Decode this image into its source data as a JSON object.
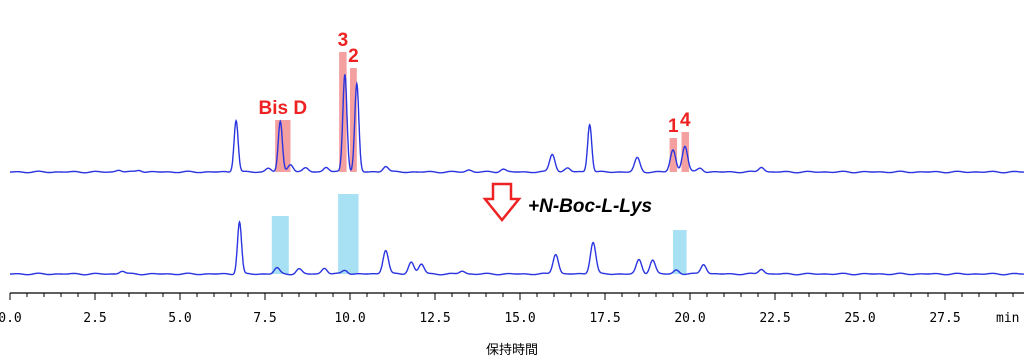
{
  "chart_data": {
    "type": "line",
    "xlabel": "保持時間",
    "xunit": "min",
    "xlim": [
      0,
      30
    ],
    "xticks": [
      {
        "value": 0,
        "label": "0.0"
      },
      {
        "value": 2.5,
        "label": "2.5"
      },
      {
        "value": 5.0,
        "label": "5.0"
      },
      {
        "value": 7.5,
        "label": "7.5"
      },
      {
        "value": 10.0,
        "label": "10.0"
      },
      {
        "value": 12.5,
        "label": "12.5"
      },
      {
        "value": 15.0,
        "label": "15.0"
      },
      {
        "value": 17.5,
        "label": "17.5"
      },
      {
        "value": 20.0,
        "label": "20.0"
      },
      {
        "value": 22.5,
        "label": "22.5"
      },
      {
        "value": 25.0,
        "label": "25.0"
      },
      {
        "value": 27.5,
        "label": "27.5"
      }
    ],
    "line_color": "#2a35e0",
    "reagent_label": "+N-Boc-L-Lys",
    "series": [
      {
        "peaks": [
          {
            "rt": 3.2,
            "h": 2
          },
          {
            "rt": 3.8,
            "h": 2
          },
          {
            "rt": 6.65,
            "h": 52
          },
          {
            "rt": 7.6,
            "h": 4
          },
          {
            "rt": 7.95,
            "h": 50
          },
          {
            "rt": 8.25,
            "h": 8
          },
          {
            "rt": 8.7,
            "h": 4
          },
          {
            "rt": 9.3,
            "h": 5
          },
          {
            "rt": 9.85,
            "h": 98
          },
          {
            "rt": 10.2,
            "h": 88
          },
          {
            "rt": 11.05,
            "h": 6
          },
          {
            "rt": 13.5,
            "h": 2
          },
          {
            "rt": 14.5,
            "h": 3
          },
          {
            "rt": 15.95,
            "h": 18
          },
          {
            "rt": 16.4,
            "h": 4
          },
          {
            "rt": 17.05,
            "h": 48
          },
          {
            "rt": 18.45,
            "h": 14
          },
          {
            "rt": 19.5,
            "h": 22
          },
          {
            "rt": 19.85,
            "h": 26
          },
          {
            "rt": 20.3,
            "h": 4
          },
          {
            "rt": 22.1,
            "h": 5
          }
        ],
        "highlights": [
          {
            "label": "Bis D",
            "rt_start": 7.8,
            "rt_end": 8.25,
            "top": 52
          },
          {
            "label": "3",
            "rt_start": 9.68,
            "rt_end": 9.9,
            "top": 120
          },
          {
            "label": "2",
            "rt_start": 10.0,
            "rt_end": 10.2,
            "top": 104
          },
          {
            "label": "1",
            "rt_start": 19.4,
            "rt_end": 19.62,
            "top": 34
          },
          {
            "label": "4",
            "rt_start": 19.75,
            "rt_end": 19.97,
            "top": 40
          }
        ],
        "highlight_color": "#f4a0a0"
      },
      {
        "peaks": [
          {
            "rt": 3.3,
            "h": 3
          },
          {
            "rt": 6.75,
            "h": 52
          },
          {
            "rt": 7.85,
            "h": 6
          },
          {
            "rt": 8.5,
            "h": 5
          },
          {
            "rt": 9.25,
            "h": 6
          },
          {
            "rt": 9.85,
            "h": 4
          },
          {
            "rt": 11.05,
            "h": 24
          },
          {
            "rt": 11.8,
            "h": 12
          },
          {
            "rt": 12.1,
            "h": 10
          },
          {
            "rt": 13.3,
            "h": 3
          },
          {
            "rt": 16.05,
            "h": 20
          },
          {
            "rt": 17.15,
            "h": 32
          },
          {
            "rt": 18.5,
            "h": 14
          },
          {
            "rt": 18.9,
            "h": 14
          },
          {
            "rt": 19.6,
            "h": 4
          },
          {
            "rt": 20.4,
            "h": 10
          },
          {
            "rt": 22.1,
            "h": 5
          }
        ],
        "highlights": [
          {
            "rt_start": 7.7,
            "rt_end": 8.2,
            "top": 58
          },
          {
            "rt_start": 9.65,
            "rt_end": 10.25,
            "top": 80
          },
          {
            "rt_start": 19.5,
            "rt_end": 19.9,
            "top": 44
          }
        ],
        "highlight_color": "#a8e0f4"
      }
    ]
  }
}
